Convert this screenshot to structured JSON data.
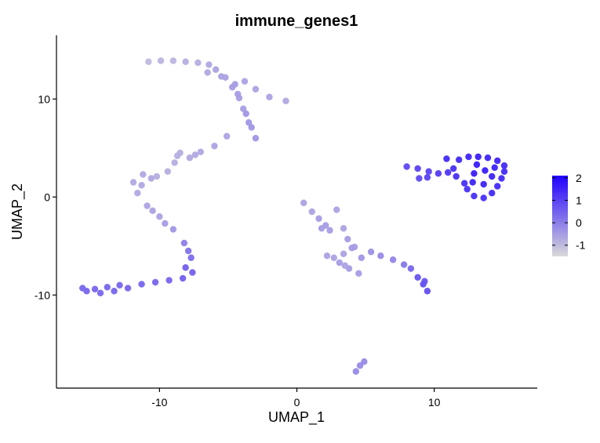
{
  "chart_data": {
    "type": "scatter",
    "title": "immune_genes1",
    "xlabel": "UMAP_1",
    "ylabel": "UMAP_2",
    "xlim": [
      -17.5,
      17.5
    ],
    "ylim": [
      -19.5,
      16.5
    ],
    "xticks": [
      -10,
      0,
      10
    ],
    "yticks": [
      10,
      0,
      -10
    ],
    "grid": false,
    "legend": {
      "placement": "right",
      "title": "",
      "min": -1.5,
      "max": 2.1,
      "ticks": [
        2,
        1,
        0,
        -1
      ],
      "low_color": "#d9d9d9",
      "high_color": "#1f00ff"
    },
    "series": [
      {
        "points": [
          [
            -10.8,
            13.8,
            -1.0
          ],
          [
            -9.9,
            13.9,
            -0.9
          ],
          [
            -9.0,
            13.9,
            -0.9
          ],
          [
            -8.1,
            13.8,
            -0.8
          ],
          [
            -7.2,
            13.7,
            -0.8
          ],
          [
            -6.4,
            13.5,
            -0.7
          ],
          [
            -5.9,
            13.0,
            -0.6
          ],
          [
            -5.2,
            12.2,
            -0.6
          ],
          [
            -4.7,
            11.2,
            -0.5
          ],
          [
            -4.2,
            10.1,
            -0.5
          ],
          [
            -3.9,
            9.0,
            -0.5
          ],
          [
            -3.5,
            7.6,
            -0.4
          ],
          [
            -3.0,
            6.0,
            -0.4
          ],
          [
            -3.8,
            11.8,
            -0.6
          ],
          [
            -3.0,
            11.0,
            -0.6
          ],
          [
            -2.0,
            10.2,
            -0.6
          ],
          [
            -0.8,
            9.8,
            -0.7
          ],
          [
            -6.5,
            12.7,
            -0.7
          ],
          [
            -5.5,
            12.3,
            -0.6
          ],
          [
            -4.5,
            11.5,
            -0.5
          ],
          [
            -3.7,
            8.5,
            -0.4
          ],
          [
            -3.3,
            7.1,
            -0.4
          ],
          [
            -4.3,
            10.5,
            -0.5
          ],
          [
            -8.5,
            4.5,
            -0.8
          ],
          [
            -7.8,
            4.0,
            -0.7
          ],
          [
            -7.0,
            4.6,
            -0.7
          ],
          [
            -6.0,
            5.2,
            -0.6
          ],
          [
            -5.1,
            6.2,
            -0.6
          ],
          [
            -8.9,
            3.5,
            -0.8
          ],
          [
            -9.4,
            2.6,
            -0.8
          ],
          [
            -10.2,
            2.1,
            -0.8
          ],
          [
            -11.2,
            2.3,
            -0.7
          ],
          [
            -11.9,
            1.5,
            -0.7
          ],
          [
            -11.6,
            0.4,
            -0.7
          ],
          [
            -10.9,
            -0.9,
            -0.6
          ],
          [
            -10.0,
            -2.0,
            -0.6
          ],
          [
            -9.0,
            -3.3,
            -0.4
          ],
          [
            -8.2,
            -4.7,
            0.0
          ],
          [
            -7.7,
            -6.2,
            0.3
          ],
          [
            -7.6,
            -7.7,
            0.5
          ],
          [
            -8.3,
            -8.3,
            0.5
          ],
          [
            -9.3,
            -8.5,
            0.4
          ],
          [
            -10.3,
            -8.7,
            0.4
          ],
          [
            -11.3,
            -8.9,
            0.4
          ],
          [
            -12.3,
            -9.3,
            0.4
          ],
          [
            -13.3,
            -9.6,
            0.4
          ],
          [
            -14.3,
            -9.8,
            0.4
          ],
          [
            -15.3,
            -9.6,
            0.4
          ],
          [
            -15.6,
            -9.3,
            0.4
          ],
          [
            -14.7,
            -9.4,
            0.4
          ],
          [
            -13.8,
            -9.2,
            0.4
          ],
          [
            -12.9,
            -9.0,
            0.4
          ],
          [
            -8.1,
            -7.2,
            0.5
          ],
          [
            -7.9,
            -5.5,
            0.2
          ],
          [
            -9.6,
            -2.7,
            -0.5
          ],
          [
            -10.5,
            -1.4,
            -0.6
          ],
          [
            -11.3,
            1.2,
            -0.7
          ],
          [
            -10.6,
            1.9,
            -0.7
          ],
          [
            -8.7,
            4.2,
            -0.8
          ],
          [
            -7.4,
            4.3,
            -0.7
          ],
          [
            0.5,
            -0.6,
            -0.6
          ],
          [
            1.1,
            -1.5,
            -0.6
          ],
          [
            1.6,
            -2.2,
            -0.5
          ],
          [
            2.1,
            -2.9,
            -0.5
          ],
          [
            2.9,
            -1.3,
            -0.6
          ],
          [
            1.8,
            -3.2,
            -0.5
          ],
          [
            2.4,
            -3.4,
            -0.5
          ],
          [
            3.4,
            -3.2,
            -0.6
          ],
          [
            3.7,
            -4.3,
            -0.5
          ],
          [
            4.2,
            -5.1,
            -0.5
          ],
          [
            3.4,
            -5.8,
            -0.6
          ],
          [
            2.7,
            -6.2,
            -0.6
          ],
          [
            2.2,
            -6.0,
            -0.6
          ],
          [
            3.1,
            -6.7,
            -0.5
          ],
          [
            3.8,
            -7.3,
            -0.5
          ],
          [
            4.5,
            -7.8,
            -0.5
          ],
          [
            4.7,
            -6.2,
            -0.4
          ],
          [
            5.4,
            -5.6,
            -0.3
          ],
          [
            6.1,
            -6.0,
            -0.2
          ],
          [
            7.0,
            -6.4,
            -0.1
          ],
          [
            7.8,
            -6.9,
            0.1
          ],
          [
            8.3,
            -7.3,
            0.4
          ],
          [
            8.8,
            -8.2,
            0.7
          ],
          [
            9.2,
            -8.9,
            0.8
          ],
          [
            9.5,
            -9.6,
            0.8
          ],
          [
            9.3,
            -8.6,
            0.7
          ],
          [
            4.0,
            -5.2,
            -0.5
          ],
          [
            3.5,
            -7.0,
            -0.6
          ],
          [
            4.3,
            -17.8,
            -0.2
          ],
          [
            4.6,
            -17.2,
            -0.2
          ],
          [
            4.9,
            -16.8,
            -0.2
          ],
          [
            8.0,
            3.1,
            0.9
          ],
          [
            8.8,
            2.9,
            1.0
          ],
          [
            9.6,
            2.6,
            1.0
          ],
          [
            10.3,
            2.4,
            1.1
          ],
          [
            11.0,
            2.5,
            1.2
          ],
          [
            11.6,
            2.1,
            1.3
          ],
          [
            12.2,
            1.4,
            1.3
          ],
          [
            11.4,
            2.9,
            1.3
          ],
          [
            11.8,
            3.8,
            1.4
          ],
          [
            10.9,
            3.9,
            1.4
          ],
          [
            12.5,
            4.1,
            1.5
          ],
          [
            13.2,
            4.1,
            1.6
          ],
          [
            13.9,
            4.0,
            1.5
          ],
          [
            14.6,
            3.7,
            1.5
          ],
          [
            15.1,
            3.2,
            1.4
          ],
          [
            15.1,
            2.6,
            1.4
          ],
          [
            14.9,
            1.9,
            1.4
          ],
          [
            14.6,
            1.1,
            1.4
          ],
          [
            14.2,
            0.4,
            1.4
          ],
          [
            13.6,
            -0.1,
            1.3
          ],
          [
            12.9,
            0.1,
            1.3
          ],
          [
            12.4,
            0.8,
            1.3
          ],
          [
            12.9,
            2.4,
            1.6
          ],
          [
            13.7,
            2.7,
            1.6
          ],
          [
            14.2,
            2.1,
            1.5
          ],
          [
            13.6,
            1.3,
            1.5
          ],
          [
            12.8,
            1.5,
            1.5
          ],
          [
            13.1,
            3.3,
            1.6
          ],
          [
            14.4,
            3.0,
            1.5
          ],
          [
            8.9,
            1.9,
            0.9
          ],
          [
            9.5,
            2.0,
            1.0
          ]
        ]
      }
    ]
  }
}
